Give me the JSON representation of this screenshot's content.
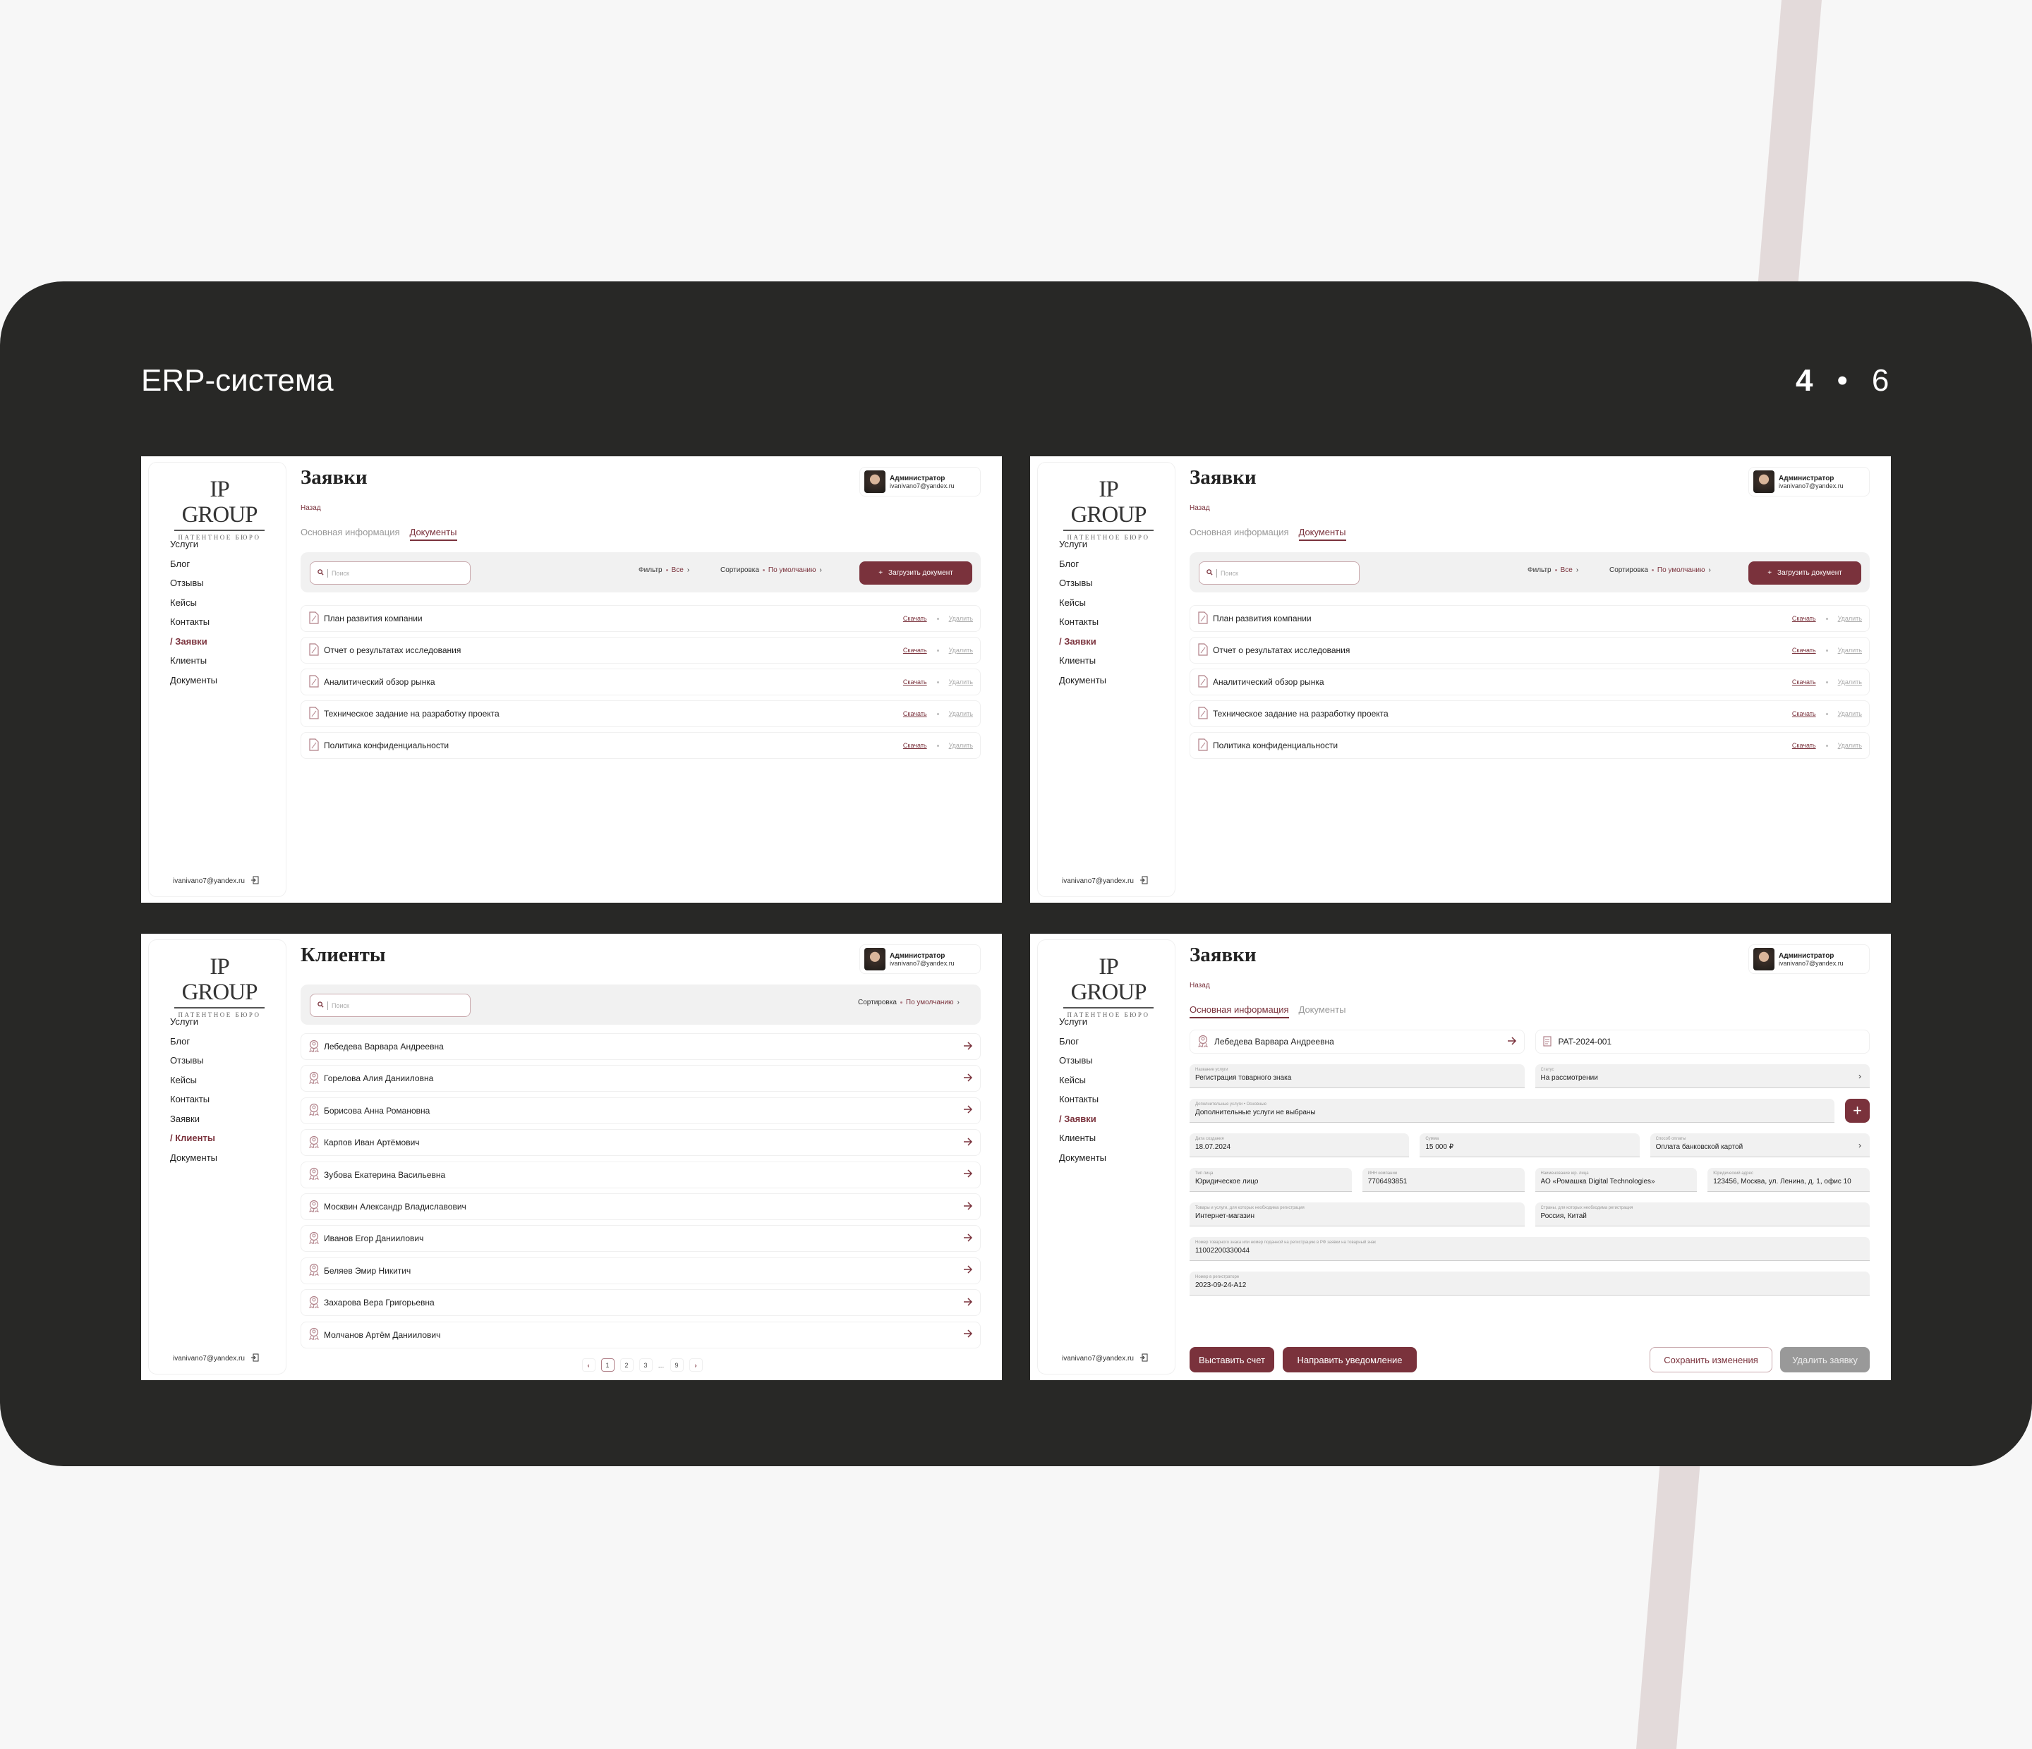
{
  "header": {
    "title": "ERP-система",
    "page_current": "4",
    "page_separator": "•",
    "page_total": "6"
  },
  "colors": {
    "accent": "#7a323c",
    "card_bg": "#282826",
    "page_bg": "#f7f7f7",
    "stripe": "#e3dada",
    "field_bg": "#f1f1f1"
  },
  "panels": [
    {
      "view": "documents",
      "logo": {
        "name": "IP GROUP",
        "tagline": "ПАТЕНТНОЕ БЮРО"
      },
      "nav": [
        "Услуги",
        "Блог",
        "Отзывы",
        "Кейсы",
        "Контакты",
        "Заявки",
        "Клиенты",
        "Документы"
      ],
      "active_nav": 5,
      "nav_active_prefix": "/ ",
      "footer_email": "ivanivano7@yandex.ru",
      "title": "Заявки",
      "user": {
        "role": "Администратор",
        "email": "ivanivano7@yandex.ru"
      },
      "back": "Назад",
      "tabs": [
        {
          "label": "Основная информация",
          "active": false
        },
        {
          "label": "Документы",
          "active": true
        }
      ],
      "toolbar": {
        "search_placeholder": "Поиск",
        "filter_label": "Фильтр",
        "filter_value": "Все",
        "sort_label": "Сортировка",
        "sort_value": "По умолчанию",
        "upload_label": "Загрузить документ"
      },
      "documents": [
        {
          "name": "План развития компании",
          "download": "Скачать",
          "delete": "Удалить"
        },
        {
          "name": "Отчет о результатах исследования",
          "download": "Скачать",
          "delete": "Удалить"
        },
        {
          "name": "Аналитический обзор рынка",
          "download": "Скачать",
          "delete": "Удалить"
        },
        {
          "name": "Техническое задание на разработку проекта",
          "download": "Скачать",
          "delete": "Удалить"
        },
        {
          "name": "Политика конфиденциальности",
          "download": "Скачать",
          "delete": "Удалить"
        }
      ]
    },
    {
      "view": "documents",
      "logo": {
        "name": "IP GROUP",
        "tagline": "ПАТЕНТНОЕ БЮРО"
      },
      "nav": [
        "Услуги",
        "Блог",
        "Отзывы",
        "Кейсы",
        "Контакты",
        "Заявки",
        "Клиенты",
        "Документы"
      ],
      "active_nav": 5,
      "nav_active_prefix": "/ ",
      "footer_email": "ivanivano7@yandex.ru",
      "title": "Заявки",
      "user": {
        "role": "Администратор",
        "email": "ivanivano7@yandex.ru"
      },
      "back": "Назад",
      "tabs": [
        {
          "label": "Основная информация",
          "active": false
        },
        {
          "label": "Документы",
          "active": true
        }
      ],
      "toolbar": {
        "search_placeholder": "Поиск",
        "filter_label": "Фильтр",
        "filter_value": "Все",
        "sort_label": "Сортировка",
        "sort_value": "По умолчанию",
        "upload_label": "Загрузить документ"
      },
      "documents": [
        {
          "name": "План развития компании",
          "download": "Скачать",
          "delete": "Удалить"
        },
        {
          "name": "Отчет о результатах исследования",
          "download": "Скачать",
          "delete": "Удалить"
        },
        {
          "name": "Аналитический обзор рынка",
          "download": "Скачать",
          "delete": "Удалить"
        },
        {
          "name": "Техническое задание на разработку проекта",
          "download": "Скачать",
          "delete": "Удалить"
        },
        {
          "name": "Политика конфиденциальности",
          "download": "Скачать",
          "delete": "Удалить"
        }
      ]
    },
    {
      "view": "clients",
      "logo": {
        "name": "IP GROUP",
        "tagline": "ПАТЕНТНОЕ БЮРО"
      },
      "nav": [
        "Услуги",
        "Блог",
        "Отзывы",
        "Кейсы",
        "Контакты",
        "Заявки",
        "Клиенты",
        "Документы"
      ],
      "active_nav": 6,
      "nav_active_prefix": "/ ",
      "footer_email": "ivanivano7@yandex.ru",
      "title": "Клиенты",
      "user": {
        "role": "Администратор",
        "email": "ivanivano7@yandex.ru"
      },
      "toolbar": {
        "search_placeholder": "Поиск",
        "sort_label": "Сортировка",
        "sort_value": "По умолчанию"
      },
      "clients": [
        "Лебедева Варвара Андреевна",
        "Горелова Алия Данииловна",
        "Борисова Анна Романовна",
        "Карпов Иван Артёмович",
        "Зубова Екатерина Васильевна",
        "Москвин Александр Владиславович",
        "Иванов Егор Даниилович",
        "Беляев Эмир Никитич",
        "Захарова Вера Григорьевна",
        "Молчанов Артём Даниилович"
      ],
      "pagination": {
        "pages": [
          "1",
          "2",
          "3",
          "…",
          "9"
        ],
        "current": "1"
      }
    },
    {
      "view": "request",
      "logo": {
        "name": "IP GROUP",
        "tagline": "ПАТЕНТНОЕ БЮРО"
      },
      "nav": [
        "Услуги",
        "Блог",
        "Отзывы",
        "Кейсы",
        "Контакты",
        "Заявки",
        "Клиенты",
        "Документы"
      ],
      "active_nav": 5,
      "nav_active_prefix": "/ ",
      "footer_email": "ivanivano7@yandex.ru",
      "title": "Заявки",
      "user": {
        "role": "Администратор",
        "email": "ivanivano7@yandex.ru"
      },
      "back": "Назад",
      "tabs": [
        {
          "label": "Основная информация",
          "active": true
        },
        {
          "label": "Документы",
          "active": false
        }
      ],
      "client_name": "Лебедева Варвара Андреевна",
      "request_number": "PAT-2024-001",
      "fields": [
        [
          {
            "label": "Название услуги",
            "value": "Регистрация товарного знака"
          },
          {
            "label": "Статус",
            "value": "На рассмотрении",
            "select": true
          }
        ],
        [
          {
            "label": "Дополнительные услуги • Основные",
            "value": "Дополнительные услуги не выбраны",
            "add": true
          }
        ],
        [
          {
            "label": "Дата создания",
            "value": "18.07.2024"
          },
          {
            "label": "Сумма",
            "value": "15 000 ₽"
          },
          {
            "label": "Способ оплаты",
            "value": "Оплата банковской картой",
            "select": true
          }
        ],
        [
          {
            "label": "Тип лица",
            "value": "Юридическое лицо"
          },
          {
            "label": "ИНН компании",
            "value": "7706493851"
          },
          {
            "label": "Наименование юр. лица",
            "value": "АО «Ромашка Digital Technologies»"
          },
          {
            "label": "Юридический адрес",
            "value": "123456, Москва, ул. Ленина, д. 1, офис 10"
          }
        ],
        [
          {
            "label": "Товары и услуги, для которых необходима регистрация",
            "value": "Интернет-магазин"
          },
          {
            "label": "Страны, для которых необходима регистрация",
            "value": "Россия, Китай"
          }
        ],
        [
          {
            "label": "Номер товарного знака или номер поданной на регистрацию в РФ заявки на товарный знак",
            "value": "11002200330044"
          }
        ],
        [
          {
            "label": "Номер в регистраторе",
            "value": "2023-09-24-A12"
          }
        ]
      ],
      "actions": {
        "invoice": "Выставить счет",
        "notify": "Направить уведомление",
        "save": "Сохранить изменения",
        "delete": "Удалить заявку"
      }
    }
  ]
}
